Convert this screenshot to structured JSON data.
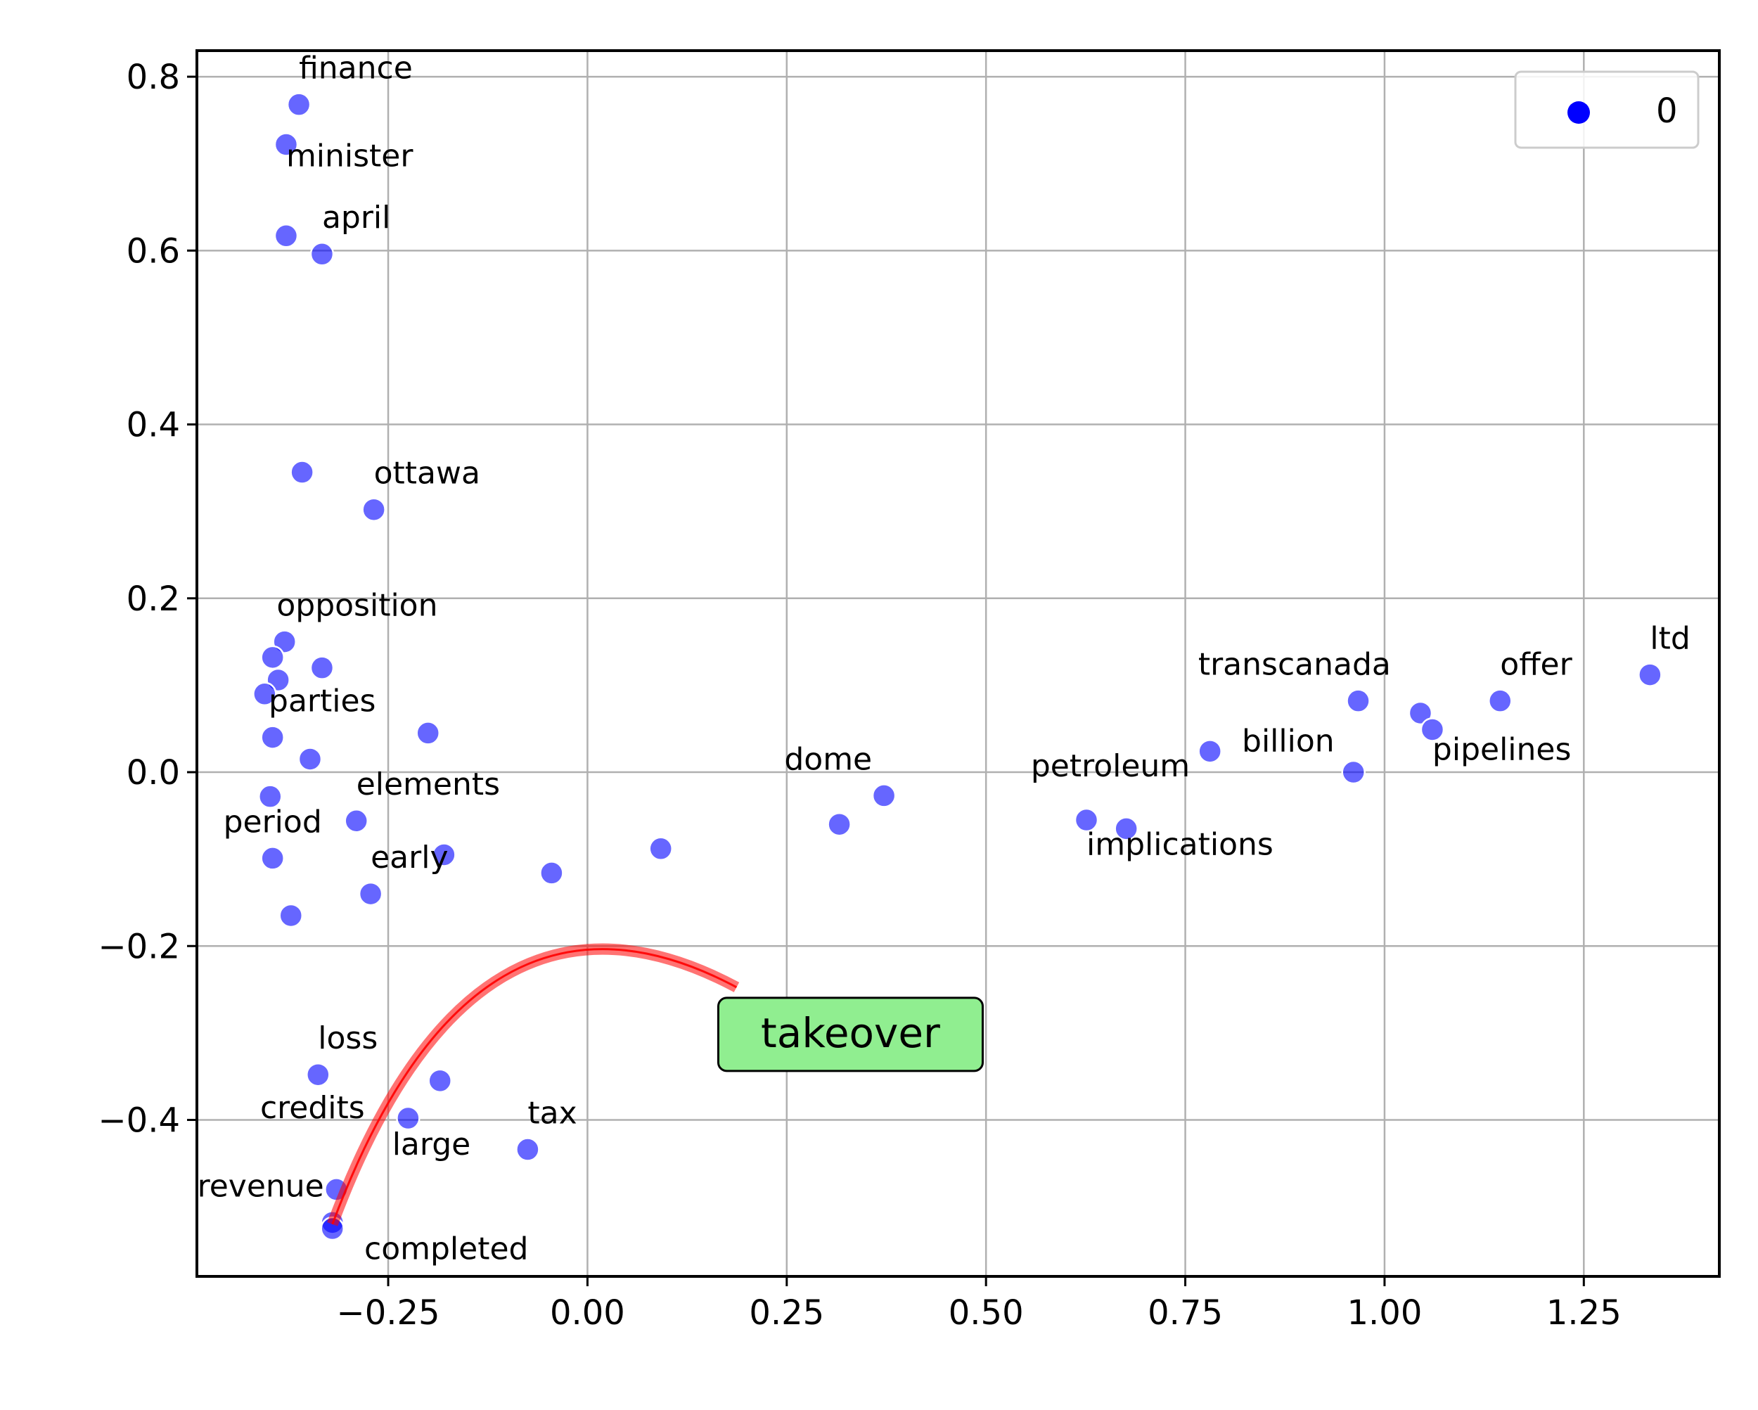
{
  "chart_data": {
    "type": "scatter",
    "title": "",
    "xlabel": "",
    "ylabel": "",
    "xlim": [
      -0.49,
      1.42
    ],
    "ylim": [
      -0.58,
      0.83
    ],
    "grid": true,
    "legend": {
      "position": "top-right",
      "entries": [
        {
          "label": "0",
          "color": "#0000ff"
        }
      ]
    },
    "x_ticks": [
      {
        "value": -0.25,
        "label": "−0.25"
      },
      {
        "value": 0.0,
        "label": "0.00"
      },
      {
        "value": 0.25,
        "label": "0.25"
      },
      {
        "value": 0.5,
        "label": "0.50"
      },
      {
        "value": 0.75,
        "label": "0.75"
      },
      {
        "value": 1.0,
        "label": "1.00"
      },
      {
        "value": 1.25,
        "label": "1.25"
      }
    ],
    "y_ticks": [
      {
        "value": -0.4,
        "label": "−0.4"
      },
      {
        "value": -0.2,
        "label": "−0.2"
      },
      {
        "value": 0.0,
        "label": "0.0"
      },
      {
        "value": 0.2,
        "label": "0.2"
      },
      {
        "value": 0.4,
        "label": "0.4"
      },
      {
        "value": 0.6,
        "label": "0.6"
      },
      {
        "value": 0.8,
        "label": "0.8"
      }
    ],
    "series": [
      {
        "name": "0",
        "color": "#0000ff",
        "alpha": 0.6,
        "points": [
          {
            "x": -0.362,
            "y": 0.768,
            "label": "finance",
            "anchor": "start",
            "dx": 0.0,
            "dy": 0.03
          },
          {
            "x": -0.378,
            "y": 0.722,
            "label": "minister",
            "anchor": "start",
            "dx": 0.0,
            "dy": -0.025
          },
          {
            "x": -0.378,
            "y": 0.617,
            "label": "",
            "anchor": "start",
            "dx": 0,
            "dy": 0
          },
          {
            "x": -0.333,
            "y": 0.596,
            "label": "april",
            "anchor": "start",
            "dx": 0.0,
            "dy": 0.03
          },
          {
            "x": -0.358,
            "y": 0.345,
            "label": "",
            "anchor": "start",
            "dx": 0,
            "dy": 0
          },
          {
            "x": -0.268,
            "y": 0.302,
            "label": "ottawa",
            "anchor": "start",
            "dx": 0.0,
            "dy": 0.03
          },
          {
            "x": -0.38,
            "y": 0.15,
            "label": "opposition",
            "anchor": "start",
            "dx": -0.01,
            "dy": 0.03
          },
          {
            "x": -0.395,
            "y": 0.132,
            "label": "",
            "anchor": "start",
            "dx": 0,
            "dy": 0
          },
          {
            "x": -0.388,
            "y": 0.106,
            "label": "",
            "anchor": "start",
            "dx": 0,
            "dy": 0
          },
          {
            "x": -0.333,
            "y": 0.12,
            "label": "",
            "anchor": "start",
            "dx": 0,
            "dy": 0
          },
          {
            "x": -0.405,
            "y": 0.09,
            "label": "",
            "anchor": "start",
            "dx": 0,
            "dy": 0
          },
          {
            "x": -0.395,
            "y": 0.04,
            "label": "parties",
            "anchor": "start",
            "dx": -0.005,
            "dy": 0.03
          },
          {
            "x": -0.348,
            "y": 0.015,
            "label": "",
            "anchor": "start",
            "dx": 0,
            "dy": 0
          },
          {
            "x": -0.2,
            "y": 0.045,
            "label": "",
            "anchor": "start",
            "dx": 0,
            "dy": 0
          },
          {
            "x": -0.398,
            "y": -0.028,
            "label": "",
            "anchor": "start",
            "dx": 0,
            "dy": 0
          },
          {
            "x": -0.29,
            "y": -0.056,
            "label": "elements",
            "anchor": "start",
            "dx": 0.0,
            "dy": 0.03
          },
          {
            "x": -0.395,
            "y": -0.099,
            "label": "period",
            "anchor": "middle",
            "dx": 0.0,
            "dy": 0.03
          },
          {
            "x": -0.18,
            "y": -0.095,
            "label": "",
            "anchor": "start",
            "dx": 0,
            "dy": 0
          },
          {
            "x": -0.045,
            "y": -0.116,
            "label": "",
            "anchor": "start",
            "dx": 0,
            "dy": 0
          },
          {
            "x": 0.092,
            "y": -0.088,
            "label": "",
            "anchor": "start",
            "dx": 0,
            "dy": 0
          },
          {
            "x": -0.272,
            "y": -0.14,
            "label": "early",
            "anchor": "start",
            "dx": 0.0,
            "dy": 0.03
          },
          {
            "x": -0.372,
            "y": -0.165,
            "label": "",
            "anchor": "start",
            "dx": 0,
            "dy": 0
          },
          {
            "x": 0.316,
            "y": -0.06,
            "label": "",
            "anchor": "start",
            "dx": 0,
            "dy": 0
          },
          {
            "x": 0.372,
            "y": -0.027,
            "label": "dome",
            "anchor": "middle",
            "dx": -0.07,
            "dy": 0.03
          },
          {
            "x": 0.626,
            "y": -0.055,
            "label": "petroleum",
            "anchor": "middle",
            "dx": 0.03,
            "dy": 0.05
          },
          {
            "x": 0.676,
            "y": -0.065,
            "label": "implications",
            "anchor": "start",
            "dx": -0.05,
            "dy": -0.03
          },
          {
            "x": 0.781,
            "y": 0.024,
            "label": "billion",
            "anchor": "start",
            "dx": 0.04,
            "dy": 0.0
          },
          {
            "x": 0.961,
            "y": 0.0,
            "label": "",
            "anchor": "start",
            "dx": 0,
            "dy": 0
          },
          {
            "x": 0.967,
            "y": 0.082,
            "label": "transcanada",
            "anchor": "middle",
            "dx": -0.08,
            "dy": 0.03
          },
          {
            "x": 1.045,
            "y": 0.068,
            "label": "",
            "anchor": "start",
            "dx": 0,
            "dy": 0
          },
          {
            "x": 1.06,
            "y": 0.049,
            "label": "pipelines",
            "anchor": "start",
            "dx": 0.0,
            "dy": -0.035
          },
          {
            "x": 1.145,
            "y": 0.082,
            "label": "offer",
            "anchor": "start",
            "dx": 0.0,
            "dy": 0.03
          },
          {
            "x": 1.333,
            "y": 0.112,
            "label": "ltd",
            "anchor": "start",
            "dx": 0.0,
            "dy": 0.03
          },
          {
            "x": -0.338,
            "y": -0.348,
            "label": "loss",
            "anchor": "start",
            "dx": 0.0,
            "dy": 0.03
          },
          {
            "x": -0.185,
            "y": -0.355,
            "label": "",
            "anchor": "start",
            "dx": 0,
            "dy": 0
          },
          {
            "x": -0.225,
            "y": -0.398,
            "label": "credits",
            "anchor": "middle",
            "dx": -0.12,
            "dy": 0.0
          },
          {
            "x": -0.075,
            "y": -0.434,
            "label": "tax",
            "anchor": "start",
            "dx": 0.0,
            "dy": 0.03
          },
          {
            "x": -0.315,
            "y": -0.48,
            "label": "",
            "anchor": "start",
            "dx": 0,
            "dy": 0
          },
          {
            "x": -0.32,
            "y": -0.518,
            "label": "revenue",
            "anchor": "middle",
            "dx": -0.09,
            "dy": 0.03
          },
          {
            "x": -0.32,
            "y": -0.525,
            "label": "completed",
            "anchor": "start",
            "dx": 0.04,
            "dy": -0.035
          }
        ],
        "extra_labels": [
          {
            "x": -0.245,
            "y": -0.44,
            "label": "large",
            "anchor": "start"
          }
        ]
      }
    ],
    "annotation": {
      "text": "takeover",
      "target": {
        "x": -0.32,
        "y": -0.52
      },
      "text_position": {
        "x": 0.33,
        "y": -0.3
      },
      "box_color": "#90ee90",
      "arrow_color": "#ff0000"
    }
  }
}
